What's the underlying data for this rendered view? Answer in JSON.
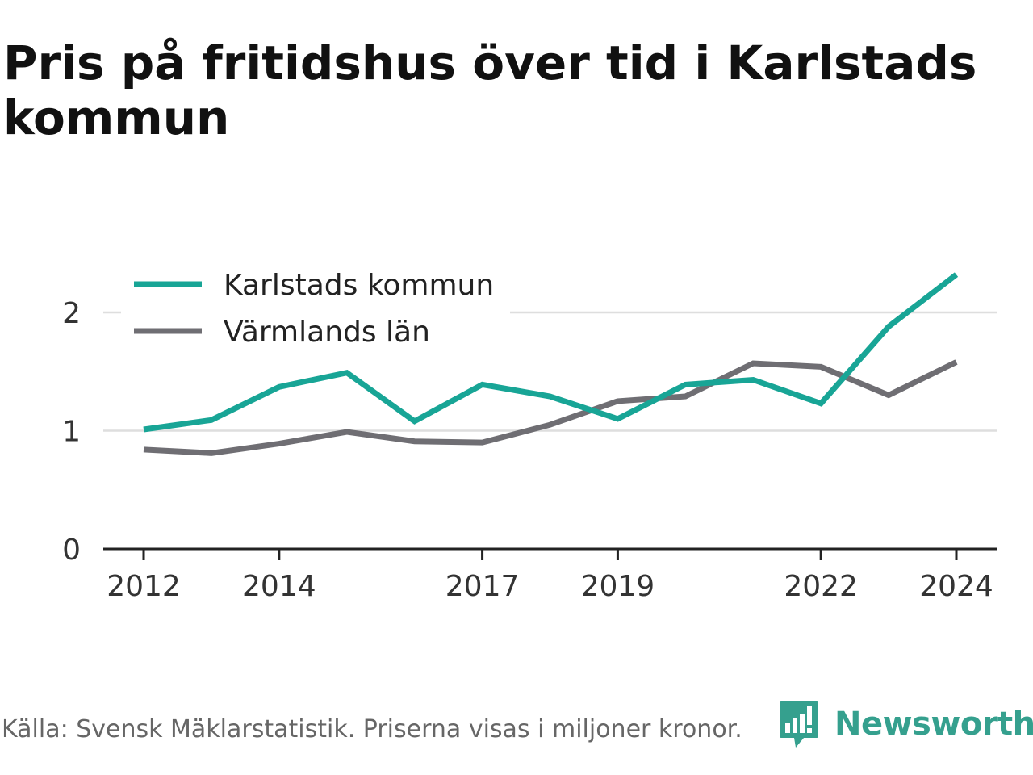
{
  "title": "Pris på fritidshus över tid i Karlstads kommun",
  "footer": {
    "source": "Källa: Svensk Mäklarstatistik. Priserna visas i miljoner kronor.",
    "brand": "Newsworthy",
    "brand_icon": "bar-chart-speech-bubble-icon",
    "brand_color": "#35a08e"
  },
  "chart_data": {
    "type": "line",
    "x": [
      2012,
      2013,
      2014,
      2015,
      2016,
      2017,
      2018,
      2019,
      2020,
      2021,
      2022,
      2023,
      2024
    ],
    "series": [
      {
        "name": "Karlstads kommun",
        "color": "#18a596",
        "values": [
          1.01,
          1.09,
          1.37,
          1.49,
          1.08,
          1.39,
          1.29,
          1.1,
          1.39,
          1.43,
          1.23,
          1.88,
          2.32
        ]
      },
      {
        "name": "Värmlands län",
        "color": "#6f6e73",
        "values": [
          0.84,
          0.81,
          0.89,
          0.99,
          0.91,
          0.9,
          1.05,
          1.25,
          1.29,
          1.57,
          1.54,
          1.3,
          1.58
        ]
      }
    ],
    "xticks": [
      2012,
      2014,
      2017,
      2019,
      2022,
      2024
    ],
    "yticks": [
      0,
      1,
      2
    ],
    "ylim": [
      0,
      2.35
    ],
    "xlim": [
      2012,
      2024
    ],
    "grid": true,
    "legend": "top-left",
    "title": "Pris på fritidshus över tid i Karlstads kommun",
    "xlabel": "",
    "ylabel": ""
  }
}
